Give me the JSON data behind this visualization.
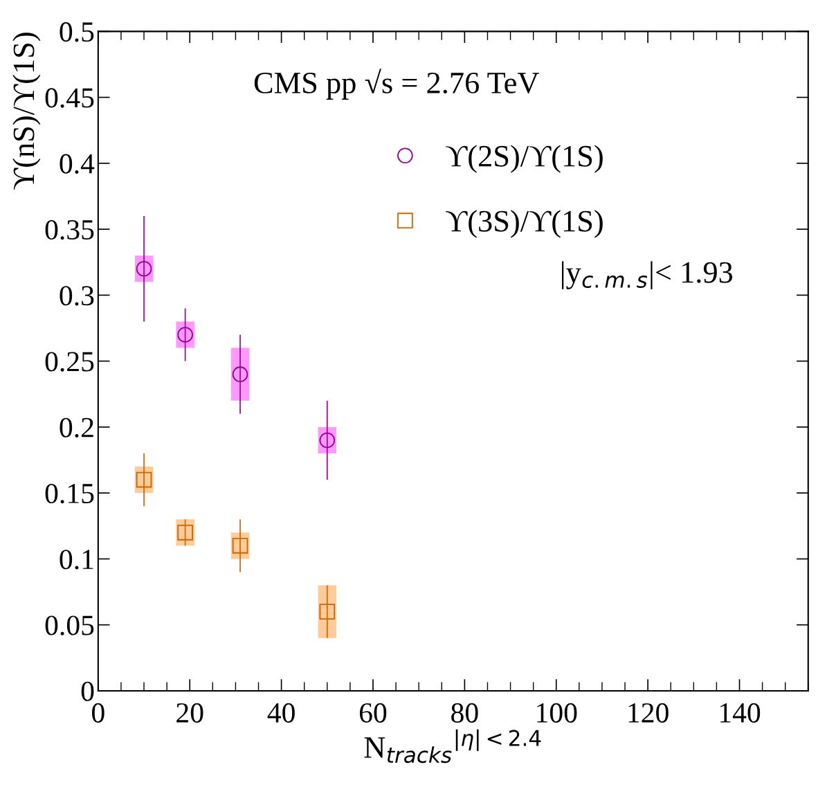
{
  "chart_data": {
    "type": "scatter",
    "annotations": [
      "CMS pp √s = 2.76 TeV",
      "|y$_{c.m.s}$|< 1.93"
    ],
    "xlabel": "N$_{tracks}$$^{|η|<2.4}$",
    "ylabel": "ϒ(nS)/ϒ(1S)",
    "series": [
      {
        "type": "bar",
        "color": "#ff99ff",
        "x": [
          10,
          19,
          31,
          50
        ],
        "base": [
          0.31,
          0.26,
          0.22,
          0.18
        ],
        "values": [
          0.02,
          0.02,
          0.04,
          0.02
        ]
      },
      {
        "type": "bar",
        "color": "#ffcc99",
        "x": [
          10,
          19,
          31,
          50
        ],
        "base": [
          0.15,
          0.11,
          0.1,
          0.04
        ],
        "values": [
          0.02,
          0.02,
          0.02,
          0.04
        ]
      },
      {
        "name": "ϒ(2S)/ϒ(1S)",
        "color": "#990099",
        "marker": "circle",
        "x": [
          10,
          19,
          31,
          50
        ],
        "values": [
          0.32,
          0.27,
          0.24,
          0.19
        ],
        "errors": [
          [
            0.28,
            0.36
          ],
          [
            0.25,
            0.29
          ],
          [
            0.21,
            0.27
          ],
          [
            0.16,
            0.22
          ]
        ]
      },
      {
        "name": "ϒ(3S)/ϒ(1S)",
        "color": "#cc6600",
        "marker": "square",
        "x": [
          10,
          19,
          31,
          50
        ],
        "values": [
          0.16,
          0.12,
          0.11,
          0.06
        ],
        "errors": [
          [
            0.14,
            0.18
          ],
          [
            0.11,
            0.13
          ],
          [
            0.09,
            0.13
          ],
          [
            0.04,
            0.08
          ]
        ]
      }
    ],
    "xlim": [
      0,
      155
    ],
    "xticks": [
      0,
      20,
      40,
      60,
      80,
      100,
      120,
      140
    ],
    "ylim": [
      0,
      0.5
    ],
    "yticks": [
      0,
      0.05,
      0.1,
      0.15,
      0.2,
      0.25,
      0.3,
      0.35,
      0.4,
      0.45,
      0.5
    ],
    "grid": false,
    "legend": "top"
  }
}
